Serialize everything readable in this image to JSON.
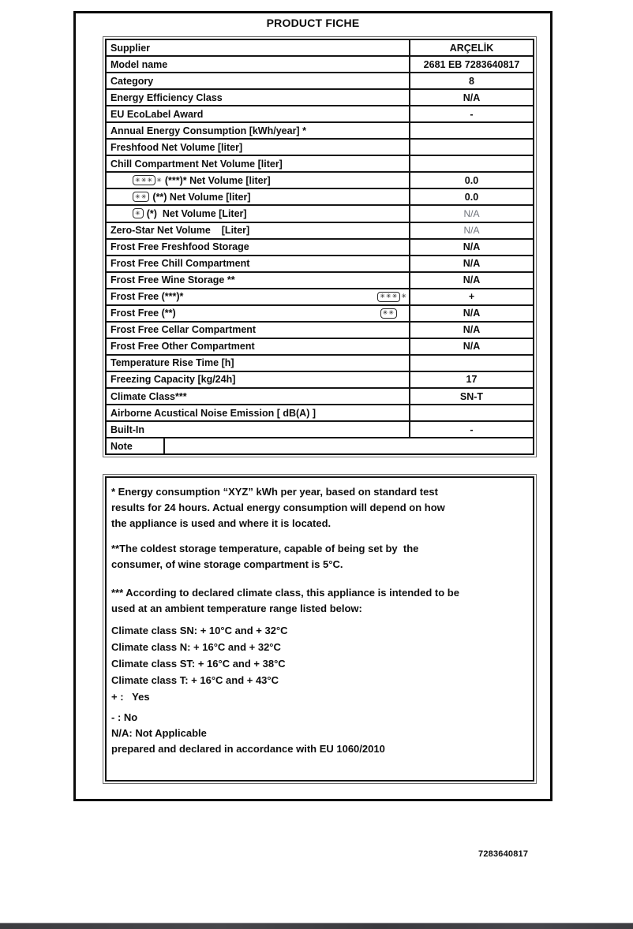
{
  "page": {
    "title": "PRODUCT FICHE",
    "document_number": "7283640817"
  },
  "table": {
    "star_glyph": "✳",
    "rows": [
      {
        "label": "Supplier",
        "value": "ARÇELİK"
      },
      {
        "label": "Model name",
        "value": "2681 EB 7283640817"
      },
      {
        "label": "Category",
        "value": "8"
      },
      {
        "label": "Energy Efficiency Class",
        "value": "N/A"
      },
      {
        "label": "EU EcoLabel Award",
        "value": "-"
      },
      {
        "label": "Annual Energy Consumption [kWh/year] *",
        "value": ""
      },
      {
        "label": "Freshfood Net Volume [liter]",
        "value": ""
      },
      {
        "label": "Chill Compartment Net Volume [liter]",
        "value": ""
      },
      {
        "label": "(***)* Net Volume [liter]",
        "value": "0.0",
        "indent": true,
        "icon": {
          "stars": 3,
          "extra": true,
          "pos": "before"
        }
      },
      {
        "label": "(**) Net Volume [liter]",
        "value": "0.0",
        "indent": true,
        "icon": {
          "stars": 2,
          "extra": false,
          "pos": "before"
        }
      },
      {
        "label": "(*)  Net Volume [Liter]",
        "value": "N/A",
        "indent": true,
        "muted": true,
        "icon": {
          "stars": 1,
          "extra": false,
          "pos": "before"
        }
      },
      {
        "label": "Zero-Star Net Volume    [Liter]",
        "value": "N/A",
        "muted": true
      },
      {
        "label": "Frost Free Freshfood Storage",
        "value": "N/A"
      },
      {
        "label": "Frost Free Chill Compartment",
        "value": "N/A"
      },
      {
        "label": "Frost Free Wine Storage **",
        "value": "N/A"
      },
      {
        "label": "Frost Free (***)*",
        "value": "+",
        "icon": {
          "stars": 3,
          "extra": true,
          "pos": "right"
        }
      },
      {
        "label": "Frost Free (**)",
        "value": "N/A",
        "icon": {
          "stars": 2,
          "extra": false,
          "pos": "right"
        }
      },
      {
        "label": "Frost Free Cellar Compartment",
        "value": "N/A"
      },
      {
        "label": "Frost Free Other Compartment",
        "value": "N/A"
      },
      {
        "label": "Temperature Rise Time [h]",
        "value": ""
      },
      {
        "label": "Freezing Capacity [kg/24h]",
        "value": "17"
      },
      {
        "label": "Climate Class***",
        "value": "SN-T"
      },
      {
        "label": "Airborne Acustical Noise Emission [ dB(A) ]",
        "value": ""
      },
      {
        "label": "Built-In",
        "value": "-"
      },
      {
        "label": "Note",
        "value": "",
        "note_row": true
      }
    ]
  },
  "notes": {
    "energy_note": "* Energy consumption “XYZ” kWh per year, based on standard test\nresults for 24 hours. Actual energy consumption will depend on how\nthe appliance is used and where it is located.",
    "wine_note": "**The coldest storage temperature, capable of being set by  the\nconsumer, of wine storage compartment is 5°C.",
    "climate_note": "*** According to declared climate class, this appliance is intended to be\nused at an ambient temperature range listed below:",
    "climate_lines": [
      "Climate class SN: + 10°C and + 32°C",
      "Climate class N: + 16°C and + 32°C",
      "Climate class ST: + 16°C and + 38°C",
      "Climate class T: + 16°C and + 43°C",
      "+ :   Yes"
    ],
    "legend_lines": [
      "- : No",
      "N/A: Not Applicable",
      "prepared and declared in accordance with EU 1060/2010"
    ]
  }
}
